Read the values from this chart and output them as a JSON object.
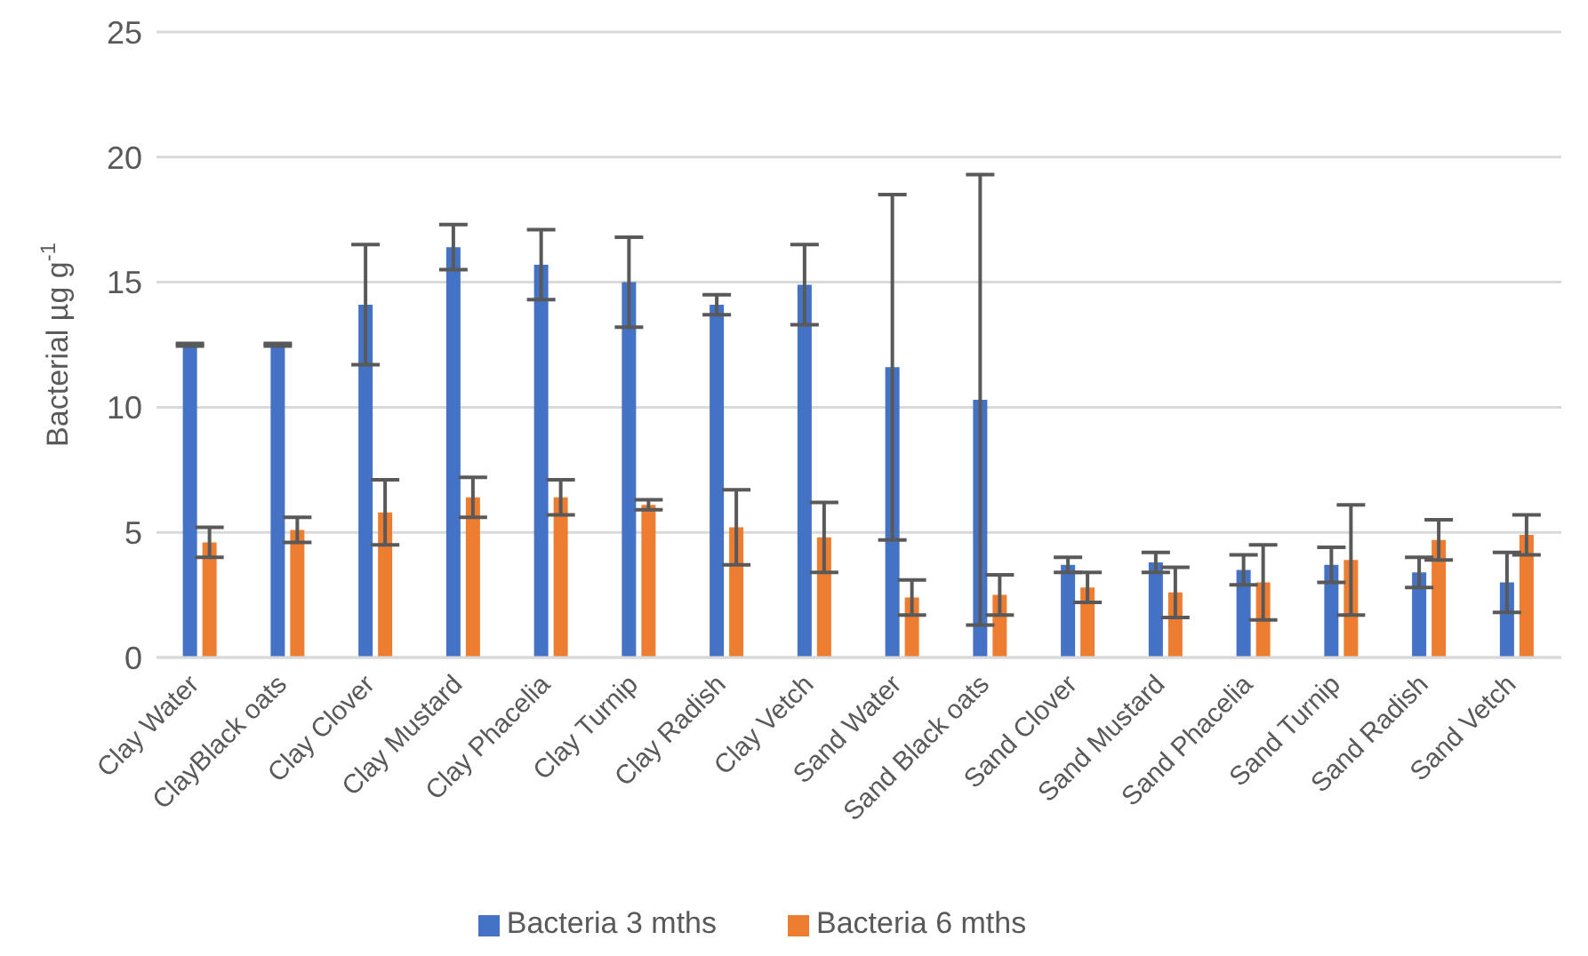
{
  "chart_data": {
    "type": "bar",
    "ylabel": "Bacterial µg g$^{-1}$",
    "categories": [
      "Clay Water",
      "ClayBlack oats",
      "Clay Clover",
      "Clay Mustard",
      "Clay Phacelia",
      "Clay Turnip",
      "Clay Radish",
      "Clay Vetch",
      "Sand Water",
      "Sand Black oats",
      "Sand Clover",
      "Sand Mustard",
      "Sand Phacelia",
      "Sand Turnip",
      "Sand Radish",
      "Sand Vetch"
    ],
    "series": [
      {
        "name": "Bacteria 3 mths",
        "color": "#4472c4",
        "values": [
          12.5,
          12.5,
          14.1,
          16.4,
          15.7,
          15.0,
          14.1,
          14.9,
          11.6,
          10.3,
          3.7,
          3.8,
          3.5,
          3.7,
          3.4,
          3.0
        ],
        "errors": [
          0.05,
          0.05,
          2.4,
          0.9,
          1.4,
          1.8,
          0.4,
          1.6,
          6.9,
          9.0,
          0.3,
          0.4,
          0.6,
          0.7,
          0.6,
          1.2
        ]
      },
      {
        "name": "Bacteria 6 mths",
        "color": "#ed7d31",
        "values": [
          4.6,
          5.1,
          5.8,
          6.4,
          6.4,
          6.1,
          5.2,
          4.8,
          2.4,
          2.5,
          2.8,
          2.6,
          3.0,
          3.9,
          4.7,
          4.9
        ],
        "errors": [
          0.6,
          0.5,
          1.3,
          0.8,
          0.7,
          0.2,
          1.5,
          1.4,
          0.7,
          0.8,
          0.6,
          1.0,
          1.5,
          2.2,
          0.8,
          0.8
        ]
      }
    ],
    "ylim": [
      0,
      25
    ],
    "yticks": [
      0,
      5,
      10,
      15,
      20,
      25
    ],
    "grid": "y",
    "legend": "bottom"
  }
}
